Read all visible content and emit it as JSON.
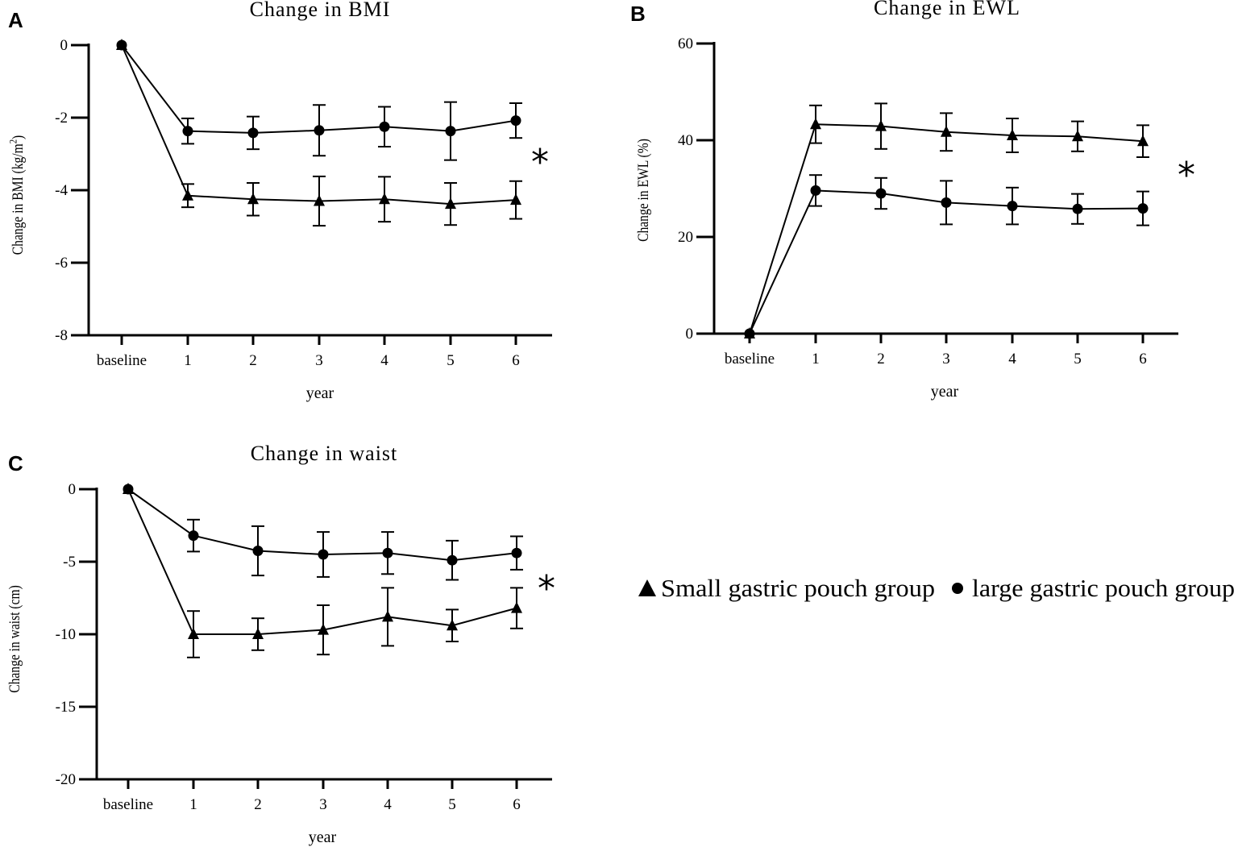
{
  "legend": {
    "triangle_label": "Small gastric pouch group",
    "circle_label": "large gastric pouch group"
  },
  "chart_data": [
    {
      "type": "line",
      "panel": "A",
      "title": "Change in BMI",
      "xlabel": "year",
      "ylabel": "Change in BMI (kg/m²)",
      "significance": "*",
      "categories": [
        "baseline",
        "1",
        "2",
        "3",
        "4",
        "5",
        "6"
      ],
      "ylim": [
        -8,
        0
      ],
      "yticks": [
        0,
        -2,
        -4,
        -6,
        -8
      ],
      "series": [
        {
          "name": "Small gastric pouch group",
          "marker": "triangle",
          "values": [
            0,
            -4.15,
            -4.25,
            -4.3,
            -4.25,
            -4.38,
            -4.27
          ],
          "err": [
            0,
            0.32,
            0.45,
            0.68,
            0.62,
            0.58,
            0.52
          ]
        },
        {
          "name": "large gastric pouch group",
          "marker": "circle",
          "values": [
            0,
            -2.37,
            -2.42,
            -2.35,
            -2.25,
            -2.37,
            -2.08
          ],
          "err": [
            0,
            0.35,
            0.45,
            0.7,
            0.55,
            0.8,
            0.48
          ]
        }
      ]
    },
    {
      "type": "line",
      "panel": "B",
      "title": "Change in EWL",
      "xlabel": "year",
      "ylabel": "Change in EWL (%)",
      "significance": "*",
      "categories": [
        "baseline",
        "1",
        "2",
        "3",
        "4",
        "5",
        "6"
      ],
      "ylim": [
        0,
        60
      ],
      "yticks": [
        0,
        20,
        40,
        60
      ],
      "series": [
        {
          "name": "Small gastric pouch group",
          "marker": "triangle",
          "values": [
            0,
            43.3,
            42.9,
            41.7,
            41.0,
            40.8,
            39.8
          ],
          "err": [
            0,
            3.9,
            4.7,
            3.9,
            3.5,
            3.1,
            3.3
          ]
        },
        {
          "name": "large gastric pouch group",
          "marker": "circle",
          "values": [
            0,
            29.6,
            29.0,
            27.1,
            26.4,
            25.8,
            25.9
          ],
          "err": [
            0,
            3.2,
            3.2,
            4.5,
            3.8,
            3.1,
            3.5
          ]
        }
      ]
    },
    {
      "type": "line",
      "panel": "C",
      "title": "Change in waist",
      "xlabel": "year",
      "ylabel": "Change in waist (cm)",
      "significance": "*",
      "categories": [
        "baseline",
        "1",
        "2",
        "3",
        "4",
        "5",
        "6"
      ],
      "ylim": [
        -20,
        0
      ],
      "yticks": [
        0,
        -5,
        -10,
        -15,
        -20
      ],
      "series": [
        {
          "name": "Small gastric pouch group",
          "marker": "triangle",
          "values": [
            0,
            -10.0,
            -10.0,
            -9.7,
            -8.8,
            -9.4,
            -8.2
          ],
          "err": [
            0,
            1.6,
            1.1,
            1.7,
            2.0,
            1.1,
            1.4
          ]
        },
        {
          "name": "large gastric pouch group",
          "marker": "circle",
          "values": [
            0,
            -3.2,
            -4.25,
            -4.5,
            -4.4,
            -4.9,
            -4.4
          ],
          "err": [
            0,
            1.1,
            1.7,
            1.55,
            1.45,
            1.35,
            1.15
          ]
        }
      ]
    }
  ]
}
